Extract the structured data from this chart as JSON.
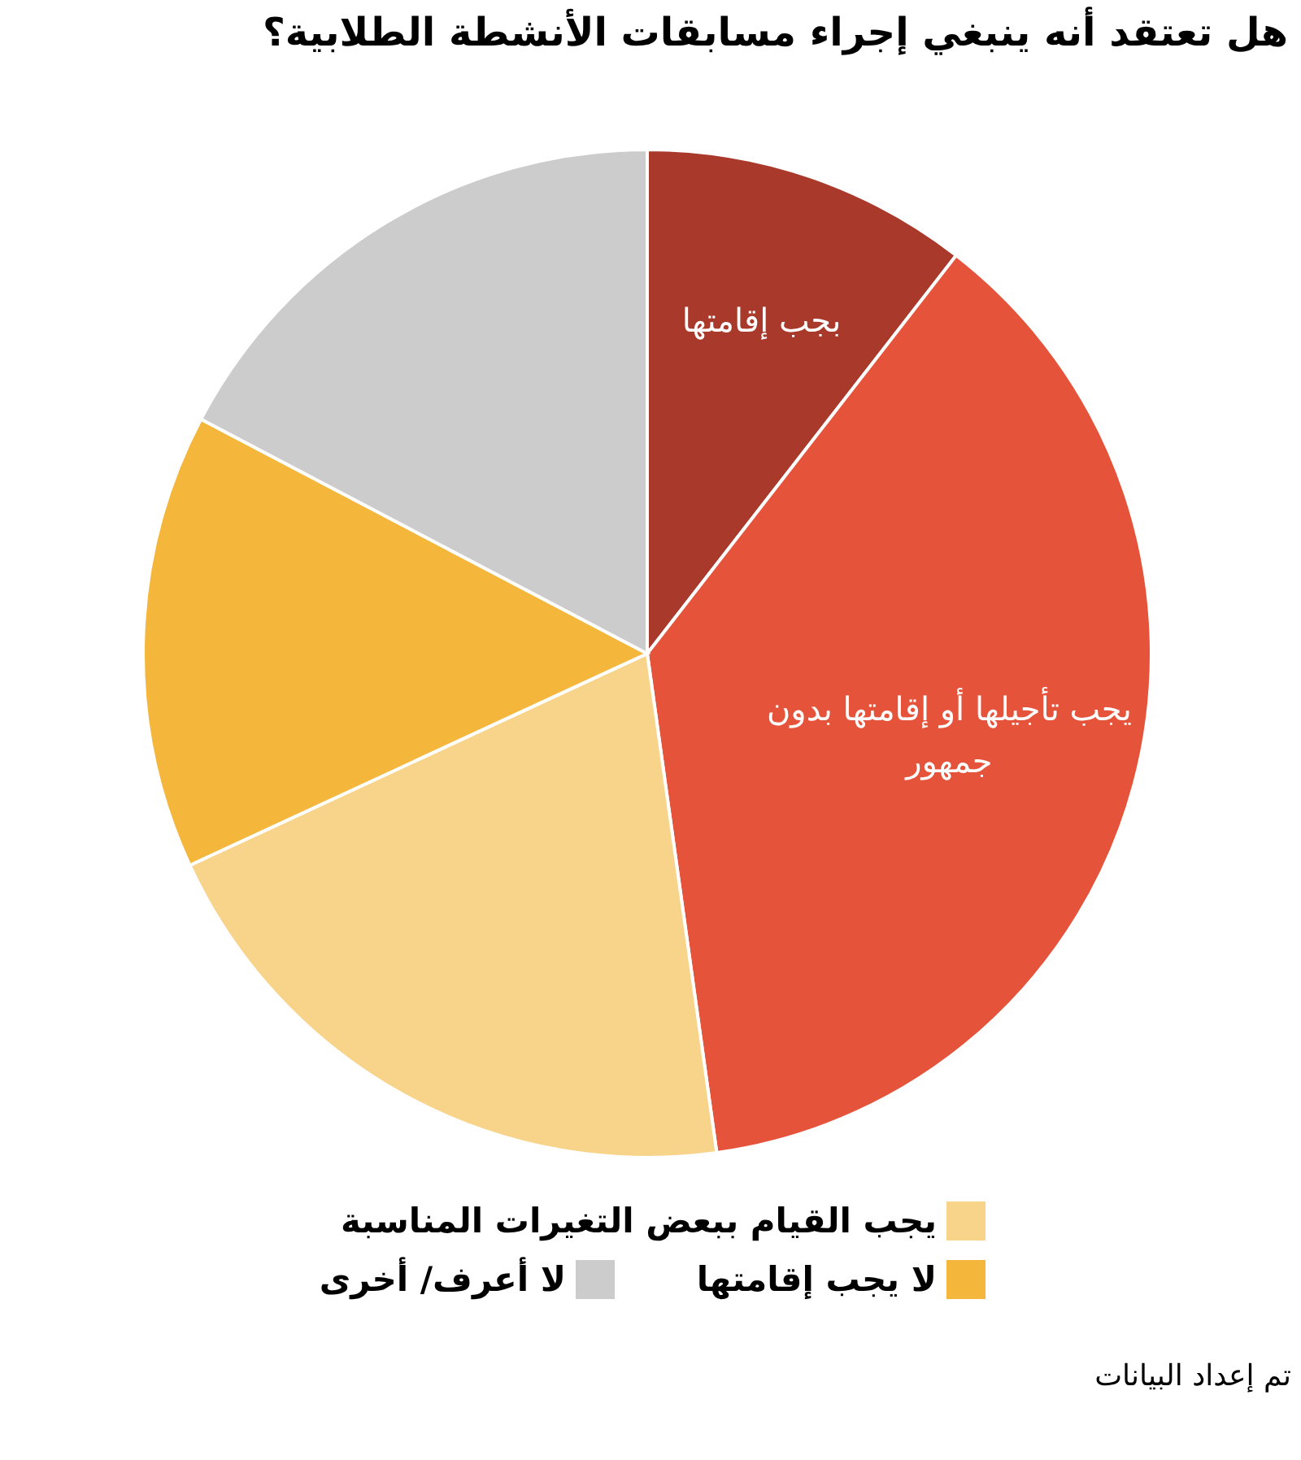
{
  "chart_data": {
    "type": "pie",
    "title": "هل تعتقد أنه ينبغي إجراء مسابقات الأنشطة الطلابية؟",
    "categories": [
      "بجب إقامتها",
      "يجب تأجيلها أو إقامتها بدون جمهور",
      "يجب القيام ببعض التغيرات المناسبة",
      "لا يجب إقامتها",
      "لا أعرف/ أخرى"
    ],
    "values": [
      10.5,
      37.3,
      20.3,
      14.6,
      17.3
    ],
    "colors": [
      "#a93a2b",
      "#e5533a",
      "#f8d38a",
      "#f5b73b",
      "#cccccc"
    ],
    "legend": "bottom",
    "annotations": [
      "تم إعداد البيانات"
    ]
  }
}
